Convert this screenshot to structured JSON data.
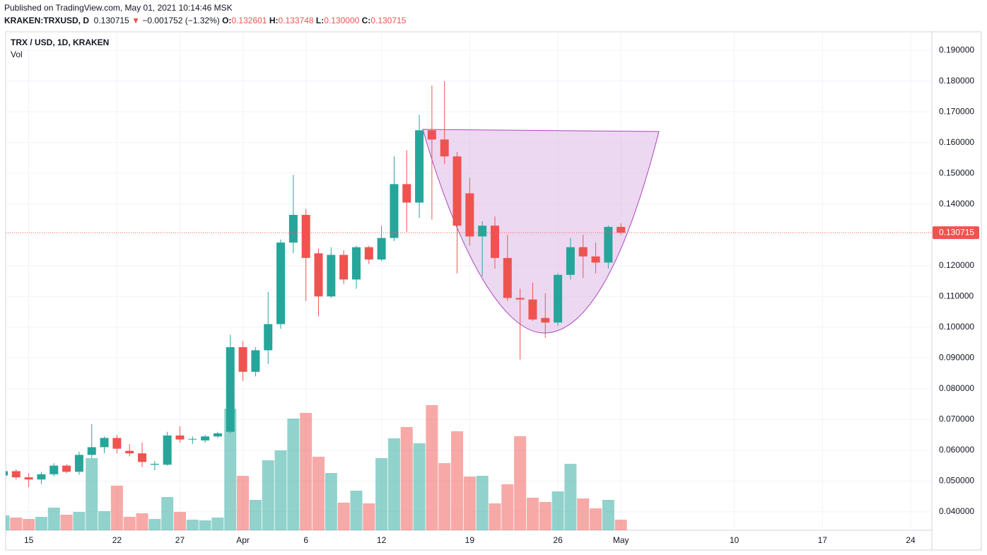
{
  "header": {
    "published": "Published on TradingView.com, May 01, 2021 10:14:46 MSK",
    "symbol": "KRAKEN:TRXUSD, D",
    "last": "0.130715",
    "arrow": "▼",
    "change": "−0.001752 (−1.32%)",
    "o_label": "O:",
    "open": "0.132601",
    "h_label": "H:",
    "high": "0.133748",
    "l_label": "L:",
    "low": "0.130000",
    "c_label": "C:",
    "close": "0.130715"
  },
  "chart_data": {
    "type": "candlestick",
    "title": "TRX / USD, 1D, KRAKEN",
    "volume_label": "Vol",
    "up_color": "#26a69a",
    "down_color": "#ef5350",
    "grid": true,
    "categories": [
      null,
      null,
      "15",
      null,
      null,
      null,
      null,
      null,
      null,
      "22",
      null,
      null,
      null,
      null,
      "27",
      null,
      null,
      null,
      null,
      "Apr",
      null,
      null,
      null,
      null,
      "6",
      null,
      null,
      null,
      null,
      null,
      "12",
      null,
      null,
      null,
      null,
      null,
      null,
      "19",
      null,
      null,
      null,
      null,
      null,
      null,
      "26",
      null,
      null,
      null,
      null,
      "May",
      null,
      null,
      null,
      null,
      null,
      null,
      null,
      null,
      "10",
      null,
      null,
      null,
      null,
      null,
      null,
      "17",
      null,
      null,
      null,
      null,
      null,
      null,
      "24",
      null
    ],
    "open": [
      0.0518,
      0.0532,
      0.0512,
      0.0505,
      0.0522,
      0.055,
      0.053,
      0.0585,
      0.061,
      0.064,
      0.0598,
      0.059,
      0.0553,
      0.0553,
      0.0648,
      0.0635,
      0.0632,
      0.0645,
      0.066,
      0.0935,
      0.0855,
      0.0925,
      0.101,
      0.1275,
      0.1365,
      0.124,
      0.11,
      0.1235,
      0.1155,
      0.126,
      0.122,
      0.129,
      0.1465,
      0.1405,
      0.164,
      0.161,
      0.1555,
      0.1435,
      0.1295,
      0.133,
      0.1225,
      0.1095,
      0.109,
      0.103,
      0.1015,
      0.117,
      0.126,
      0.123,
      0.121,
      0.132601,
      null,
      null,
      null,
      null,
      null,
      null,
      null,
      null,
      null,
      null,
      null,
      null,
      null,
      null,
      null,
      null,
      null,
      null,
      null,
      null,
      null,
      null,
      null,
      null
    ],
    "high": [
      0.0535,
      0.0538,
      0.0525,
      0.053,
      0.0558,
      0.0555,
      0.0595,
      0.0685,
      0.0645,
      0.065,
      0.062,
      0.0625,
      0.0565,
      0.066,
      0.0678,
      0.0645,
      0.065,
      0.066,
      0.0975,
      0.0955,
      0.0935,
      0.1115,
      0.1285,
      0.1495,
      0.1385,
      0.1255,
      0.126,
      0.125,
      0.1265,
      0.1265,
      0.133,
      0.1555,
      0.1575,
      0.169,
      0.1785,
      0.18,
      0.157,
      0.1485,
      0.1345,
      0.136,
      0.13,
      0.1125,
      0.1145,
      0.111,
      0.1175,
      0.129,
      0.13,
      0.1275,
      0.133,
      0.133748,
      null,
      null,
      null,
      null,
      null,
      null,
      null,
      null,
      null,
      null,
      null,
      null,
      null,
      null,
      null,
      null,
      null,
      null,
      null,
      null,
      null,
      null,
      null,
      null
    ],
    "low": [
      0.051,
      0.0505,
      0.048,
      0.049,
      0.0515,
      0.0525,
      0.052,
      0.0575,
      0.059,
      0.059,
      0.058,
      0.0545,
      0.0535,
      0.055,
      0.0625,
      0.062,
      0.0625,
      0.064,
      0.0655,
      0.0825,
      0.084,
      0.088,
      0.0995,
      0.124,
      0.1085,
      0.1035,
      0.1095,
      0.114,
      0.1125,
      0.1205,
      0.1215,
      0.128,
      0.131,
      0.1355,
      0.135,
      0.153,
      0.1175,
      0.1265,
      0.1165,
      0.119,
      0.1085,
      0.0895,
      0.102,
      0.0965,
      0.1005,
      0.1155,
      0.116,
      0.1175,
      0.119,
      0.13,
      null,
      null,
      null,
      null,
      null,
      null,
      null,
      null,
      null,
      null,
      null,
      null,
      null,
      null,
      null,
      null,
      null,
      null,
      null,
      null,
      null,
      null,
      null,
      null
    ],
    "close": [
      0.0532,
      0.0512,
      0.0505,
      0.0522,
      0.055,
      0.053,
      0.0585,
      0.061,
      0.064,
      0.0605,
      0.059,
      0.0562,
      0.0556,
      0.0648,
      0.0635,
      0.0637,
      0.0645,
      0.0655,
      0.0935,
      0.0855,
      0.0925,
      0.101,
      0.1275,
      0.1365,
      0.1225,
      0.11,
      0.1235,
      0.1155,
      0.126,
      0.122,
      0.129,
      0.1465,
      0.1405,
      0.164,
      0.161,
      0.1555,
      0.133,
      0.1295,
      0.133,
      0.1225,
      0.1095,
      0.109,
      0.1025,
      0.1015,
      0.117,
      0.126,
      0.123,
      0.121,
      0.1326,
      0.130715,
      null,
      null,
      null,
      null,
      null,
      null,
      null,
      null,
      null,
      null,
      null,
      null,
      null,
      null,
      null,
      null,
      null,
      null,
      null,
      null,
      null,
      null,
      null,
      null
    ],
    "volume": [
      21,
      18,
      16,
      19,
      32,
      22,
      26,
      102,
      27,
      63,
      19,
      24,
      16,
      47,
      26,
      15,
      14,
      18,
      172,
      77,
      43,
      99,
      113,
      158,
      166,
      104,
      81,
      39,
      56,
      38,
      102,
      130,
      146,
      123,
      177,
      95,
      140,
      76,
      77,
      38,
      65,
      133,
      46,
      40,
      55,
      94,
      45,
      31,
      43,
      15,
      null,
      null,
      null,
      null,
      null,
      null,
      null,
      null,
      null,
      null,
      null,
      null,
      null,
      null,
      null,
      null,
      null,
      null,
      null,
      null,
      null,
      null,
      null,
      null
    ],
    "ylim": [
      0.034,
      0.196
    ],
    "yticks": [
      {
        "value": 0.04,
        "label": "0.040000"
      },
      {
        "value": 0.05,
        "label": "0.050000"
      },
      {
        "value": 0.06,
        "label": "0.060000"
      },
      {
        "value": 0.07,
        "label": "0.070000"
      },
      {
        "value": 0.08,
        "label": "0.080000"
      },
      {
        "value": 0.09,
        "label": "0.090000"
      },
      {
        "value": 0.1,
        "label": "0.100000"
      },
      {
        "value": 0.11,
        "label": "0.110000"
      },
      {
        "value": 0.12,
        "label": "0.120000"
      },
      {
        "value": 0.13,
        "label": "0.130000"
      },
      {
        "value": 0.14,
        "label": "0.140000"
      },
      {
        "value": 0.15,
        "label": "0.150000"
      },
      {
        "value": 0.16,
        "label": "0.160000"
      },
      {
        "value": 0.17,
        "label": "0.170000"
      },
      {
        "value": 0.18,
        "label": "0.180000"
      },
      {
        "value": 0.19,
        "label": "0.190000"
      }
    ],
    "last_price": {
      "value": 0.130715,
      "label": "0.130715"
    }
  }
}
